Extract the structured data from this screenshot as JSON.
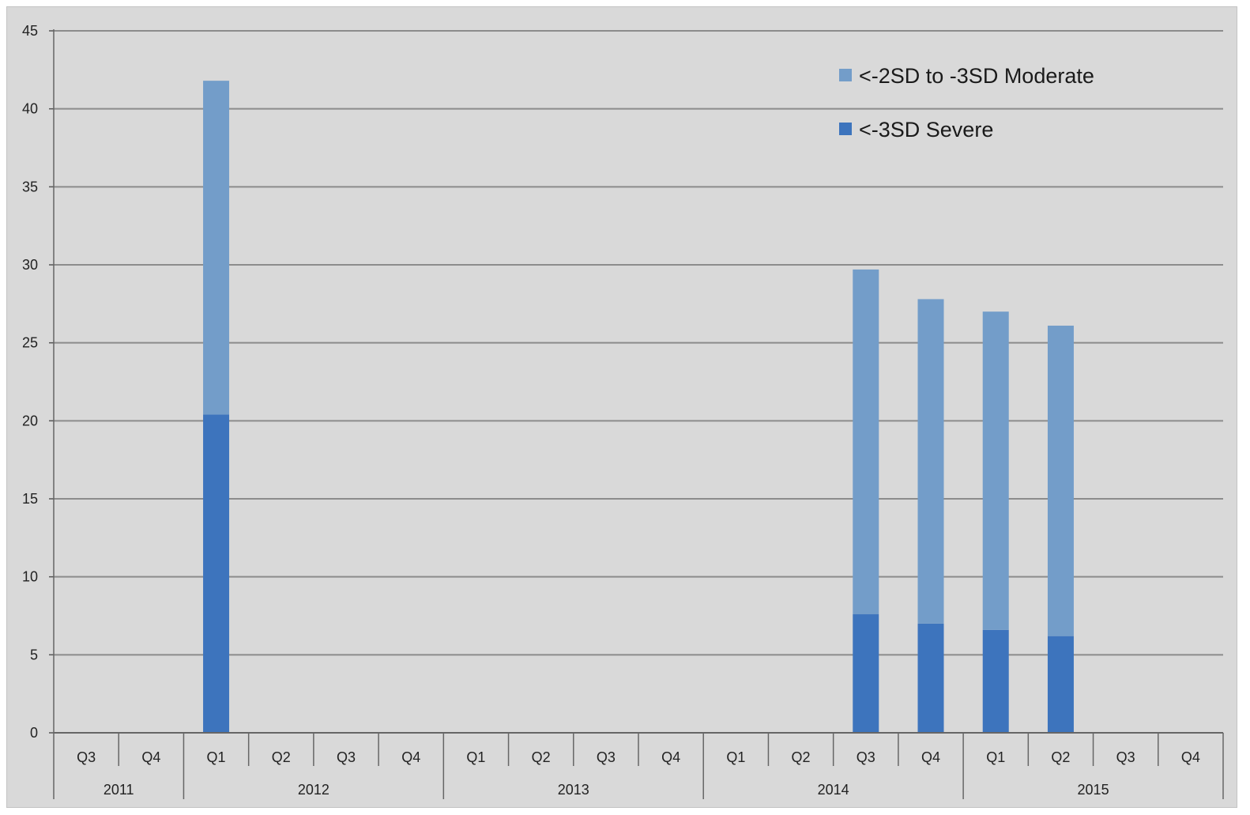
{
  "chart_data": {
    "type": "bar",
    "stacked": true,
    "categories": [
      "Q3",
      "Q4",
      "Q1",
      "Q2",
      "Q3",
      "Q4",
      "Q1",
      "Q2",
      "Q3",
      "Q4",
      "Q1",
      "Q2",
      "Q3",
      "Q4",
      "Q1",
      "Q2",
      "Q3",
      "Q4"
    ],
    "years": [
      {
        "label": "2011",
        "quarters": 2
      },
      {
        "label": "2012",
        "quarters": 4
      },
      {
        "label": "2013",
        "quarters": 4
      },
      {
        "label": "2014",
        "quarters": 4
      },
      {
        "label": "2015",
        "quarters": 4
      }
    ],
    "series": [
      {
        "name": "<-3SD Severe",
        "color": "#3d74bd",
        "values": [
          0,
          0,
          20.4,
          0,
          0,
          0,
          0,
          0,
          0,
          0,
          0,
          0,
          7.6,
          7.0,
          6.6,
          6.2,
          0,
          0
        ]
      },
      {
        "name": "<-2SD to -3SD Moderate",
        "color": "#739dc9",
        "values": [
          0,
          0,
          21.4,
          0,
          0,
          0,
          0,
          0,
          0,
          0,
          0,
          0,
          22.1,
          20.8,
          20.4,
          19.9,
          0,
          0
        ]
      }
    ],
    "legend_order": [
      1,
      0
    ],
    "legend_position": "top-right",
    "ylim": [
      0,
      45
    ],
    "yticks": [
      0,
      5,
      10,
      15,
      20,
      25,
      30,
      35,
      40,
      45
    ],
    "grid": true,
    "title": "",
    "xlabel": "",
    "ylabel": ""
  }
}
